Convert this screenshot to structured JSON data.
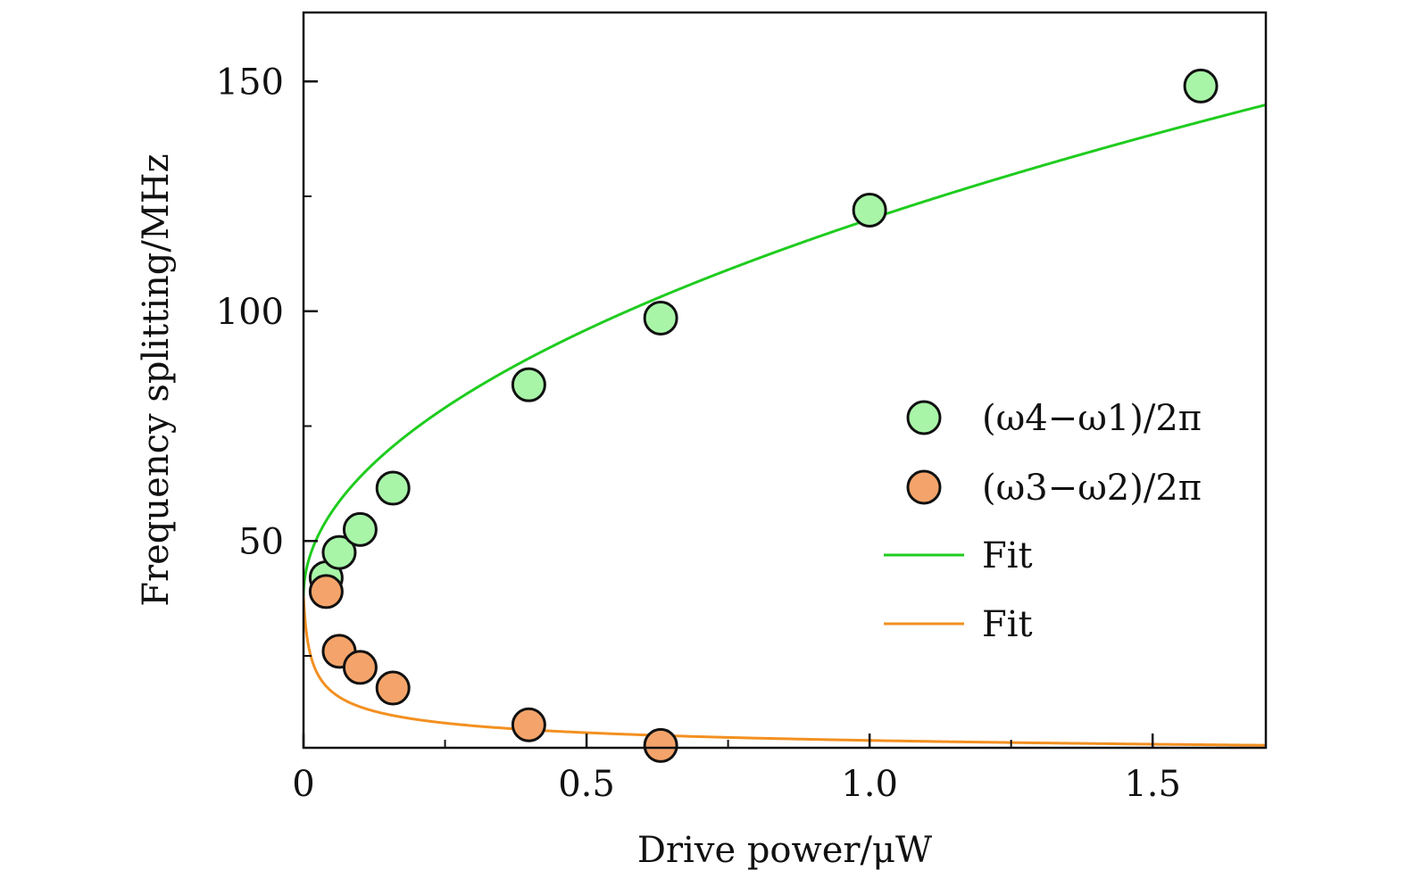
{
  "chart_data": {
    "type": "scatter",
    "xlabel": "Drive power/μW",
    "ylabel": "Frequency splitting/MHz",
    "xlim": [
      0,
      1.7
    ],
    "ylim": [
      5,
      165
    ],
    "xticks": [
      {
        "value": 0,
        "label": "0"
      },
      {
        "value": 0.5,
        "label": "0.5"
      },
      {
        "value": 1.0,
        "label": "1.0"
      },
      {
        "value": 1.5,
        "label": "1.5"
      }
    ],
    "xminor": [
      0.25,
      0.75,
      1.25
    ],
    "yticks": [
      {
        "value": 50,
        "label": "50"
      },
      {
        "value": 100,
        "label": "100"
      },
      {
        "value": 150,
        "label": "150"
      }
    ],
    "yminor": [
      25,
      75,
      125
    ],
    "grid": false,
    "legend_position": "right",
    "series": [
      {
        "name": "(ω4−ω1)/2π",
        "kind": "points",
        "color": "#a8f5a8",
        "x": [
          0.04,
          0.063,
          0.1,
          0.158,
          0.398,
          0.631,
          1.0,
          1.585
        ],
        "y": [
          42,
          47.5,
          52.5,
          61.5,
          84,
          98.5,
          122,
          149
        ]
      },
      {
        "name": "(ω3−ω2)/2π",
        "kind": "points",
        "color": "#f4a46a",
        "x": [
          0.04,
          0.063,
          0.1,
          0.158,
          0.398,
          0.631
        ],
        "y": [
          39,
          26,
          22.5,
          18,
          10,
          5.5
        ]
      },
      {
        "name": "Fit",
        "kind": "line",
        "color": "#1fcc1f",
        "model": "y = 38 + 82*sqrt(x)",
        "params": {
          "a": 38,
          "b": 82,
          "power": 0.5
        }
      },
      {
        "name": "Fit",
        "kind": "line",
        "color": "#f39020",
        "model": "y = 38*(1 + 200*x)^-0.33",
        "params": {
          "a": 38,
          "c": 200,
          "power": -0.33
        }
      }
    ]
  }
}
